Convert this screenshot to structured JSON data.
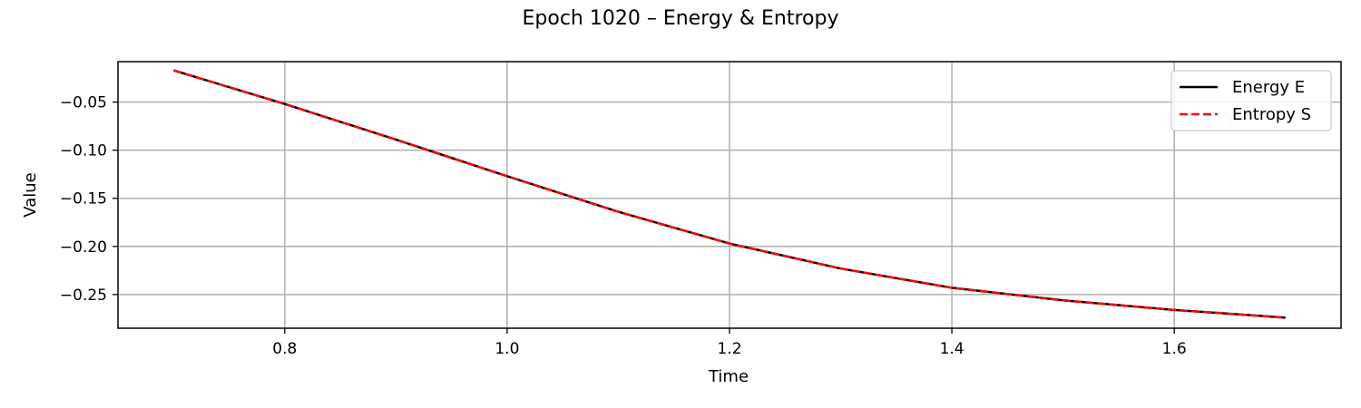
{
  "chart_data": {
    "type": "line",
    "title": "Epoch 1020 – Energy & Entropy",
    "xlabel": "Time",
    "ylabel": "Value",
    "xlim": [
      0.65,
      1.75
    ],
    "ylim": [
      -0.285,
      -0.008
    ],
    "xticks": [
      0.8,
      1.0,
      1.2,
      1.4,
      1.6
    ],
    "xtick_labels": [
      "0.8",
      "1.0",
      "1.2",
      "1.4",
      "1.6"
    ],
    "yticks": [
      -0.05,
      -0.1,
      -0.15,
      -0.2,
      -0.25
    ],
    "ytick_labels": [
      "−0.05",
      "−0.10",
      "−0.15",
      "−0.20",
      "−0.25"
    ],
    "grid": true,
    "legend_position": "top-right",
    "x": [
      0.7,
      0.8,
      0.9,
      1.0,
      1.1,
      1.2,
      1.3,
      1.4,
      1.5,
      1.6,
      1.7
    ],
    "series": [
      {
        "name": "Energy E",
        "color": "#000000",
        "style": "solid",
        "values": [
          -0.017,
          -0.052,
          -0.089,
          -0.127,
          -0.164,
          -0.197,
          -0.223,
          -0.243,
          -0.256,
          -0.266,
          -0.274
        ]
      },
      {
        "name": "Entropy S",
        "color": "#ff0000",
        "style": "dashed",
        "values": [
          -0.017,
          -0.052,
          -0.089,
          -0.127,
          -0.164,
          -0.197,
          -0.223,
          -0.243,
          -0.256,
          -0.266,
          -0.274
        ]
      }
    ]
  }
}
